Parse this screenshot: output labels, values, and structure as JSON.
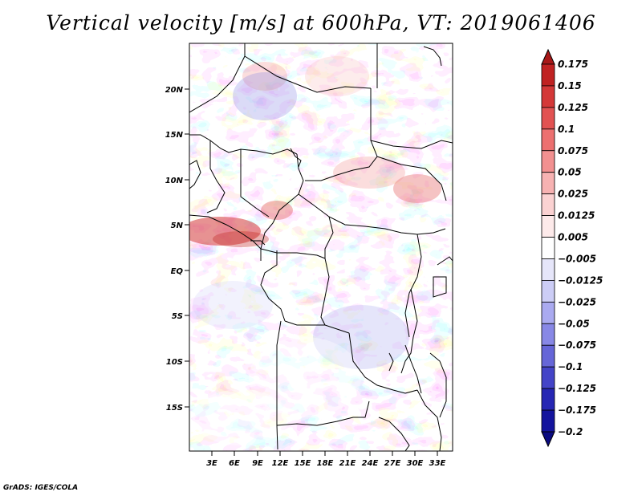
{
  "title": "Vertical velocity [m/s] at 600hPa, VT: 2019061406",
  "footer": "GrADS: IGES/COLA",
  "map": {
    "lat_labels": [
      "20N",
      "15N",
      "10N",
      "5N",
      "EQ",
      "5S",
      "10S",
      "15S"
    ],
    "lon_labels": [
      "3E",
      "6E",
      "9E",
      "12E",
      "15E",
      "18E",
      "21E",
      "24E",
      "27E",
      "30E",
      "33E"
    ]
  },
  "colorbar": {
    "labels": [
      "0.175",
      "0.15",
      "0.125",
      "0.1",
      "0.075",
      "0.05",
      "0.025",
      "0.0125",
      "0.005",
      "−0.005",
      "−0.0125",
      "−0.025",
      "−0.05",
      "−0.075",
      "−0.1",
      "−0.125",
      "−0.175",
      "−0.2"
    ],
    "colors": [
      "#a81818",
      "#c02222",
      "#d43838",
      "#e25252",
      "#ec7070",
      "#f29090",
      "#f7b2b2",
      "#fbd2d2",
      "#fdeaea",
      "#ffffff",
      "#e6e6fa",
      "#cccdf6",
      "#aaaaf0",
      "#8888e6",
      "#6666d8",
      "#4444c8",
      "#2626b4",
      "#14149e",
      "#0a0a80"
    ]
  }
}
